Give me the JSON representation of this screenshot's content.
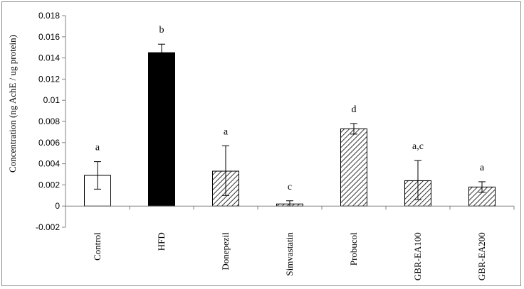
{
  "chart_data": {
    "type": "bar",
    "title": "",
    "xlabel": "",
    "ylabel": "Concentration (ng AchE / ug protein)",
    "ylim": [
      -0.002,
      0.018
    ],
    "yticks": [
      "-0.002",
      "0",
      "0.002",
      "0.004",
      "0.006",
      "0.008",
      "0.01",
      "0.012",
      "0.014",
      "0.016",
      "0.018"
    ],
    "grid": false,
    "legend": "none",
    "categories": [
      "Control",
      "HFD",
      "Donepezil",
      "Simvastatin",
      "Probucol",
      "GBR-EA100",
      "GBR-EA200"
    ],
    "values": [
      0.0029,
      0.0145,
      0.0033,
      0.0002,
      0.0073,
      0.0024,
      0.0018
    ],
    "error_upper": [
      0.0013,
      0.0008,
      0.0024,
      0.0003,
      0.0005,
      0.0019,
      0.0005
    ],
    "error_lower": [
      0.0013,
      0.0008,
      0.0023,
      0.0002,
      0.0005,
      0.0018,
      0.0005
    ],
    "annotations": [
      "a",
      "b",
      "a",
      "c",
      "d",
      "a,c",
      "a"
    ],
    "fills": [
      "white",
      "black",
      "hatched",
      "hatched",
      "hatched",
      "hatched",
      "hatched"
    ]
  },
  "colors": {
    "axis": "#808080",
    "bar_outline": "#000000",
    "hfd_fill": "#000000",
    "control_fill": "#ffffff",
    "hatch": "#000000"
  }
}
